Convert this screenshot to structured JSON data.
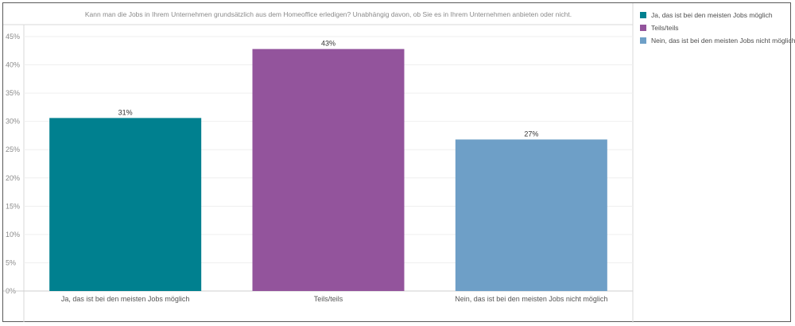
{
  "chart_data": {
    "type": "bar",
    "title": "Kann man die Jobs in Ihrem Unternehmen grundsätzlich aus dem Homeoffice erledigen? Unabhängig davon, ob Sie es in Ihrem Unternehmen anbieten oder nicht.",
    "categories": [
      "Ja, das ist bei den meisten Jobs möglich",
      "Teils/teils",
      "Nein, das ist bei den meisten Jobs nicht möglich"
    ],
    "values": [
      30.6,
      42.8,
      26.8
    ],
    "data_labels": [
      "31%",
      "43%",
      "27%"
    ],
    "colors": [
      "#00808f",
      "#93549c",
      "#6e9fc7"
    ],
    "ylim": [
      0,
      45
    ],
    "yticks": [
      0,
      5,
      10,
      15,
      20,
      25,
      30,
      35,
      40,
      45
    ],
    "ytick_labels": [
      "0%",
      "5%",
      "10%",
      "15%",
      "20%",
      "25%",
      "30%",
      "35%",
      "40%",
      "45%"
    ],
    "grid": true,
    "legend_position": "top-right"
  },
  "legend": {
    "items": [
      {
        "label": "Ja, das ist bei den meisten Jobs möglich",
        "color": "#00808f"
      },
      {
        "label": "Teils/teils",
        "color": "#93549c"
      },
      {
        "label": "Nein, das ist bei den meisten Jobs nicht möglich",
        "color": "#6e9fc7"
      }
    ]
  }
}
